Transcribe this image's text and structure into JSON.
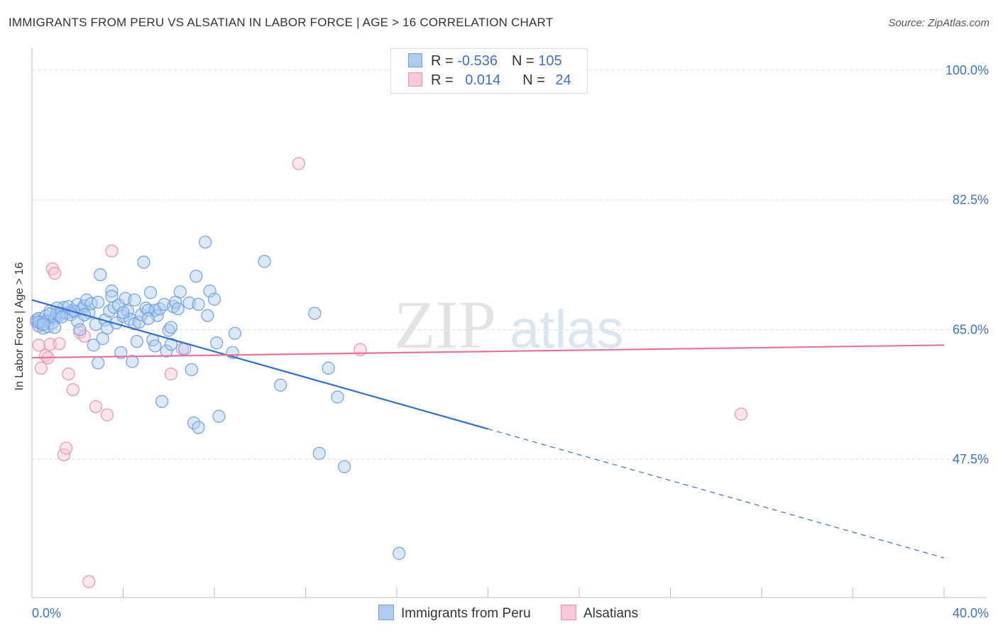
{
  "title": "IMMIGRANTS FROM PERU VS ALSATIAN IN LABOR FORCE | AGE > 16 CORRELATION CHART",
  "source": "Source: ZipAtlas.com",
  "watermark": {
    "zip": "ZIP",
    "atlas": "atlas"
  },
  "colors": {
    "blue": "#6fa0e0",
    "blue_fill": "#aecbf0",
    "pink": "#f08fb0",
    "pink_fill": "#f8c6d8",
    "blue_line": "#2f6fd0",
    "pink_line": "#e8739c",
    "tick_text": "#3b72c9"
  },
  "legend": {
    "rows": [
      {
        "r_label": "R = ",
        "r_value": "-0.536",
        "n_label": "N = ",
        "n_value": "105"
      },
      {
        "r_label": "R = ",
        "r_value": "0.014",
        "n_label": "N = ",
        "n_value": "24"
      }
    ]
  },
  "bottom_legend": [
    "Immigrants from Peru",
    "Alsatians"
  ],
  "chart_data": {
    "type": "scatter",
    "title": "IMMIGRANTS FROM PERU VS ALSATIAN IN LABOR FORCE | AGE > 16 CORRELATION CHART",
    "xlabel": "",
    "ylabel": "In Labor Force | Age > 16",
    "xlim": [
      0,
      40
    ],
    "ylim": [
      30,
      102
    ],
    "x_tick_labels": [
      "0.0%",
      "40.0%"
    ],
    "y_ticks": [
      47.5,
      65.0,
      82.5,
      100.0
    ],
    "y_tick_labels": [
      "47.5%",
      "65.0%",
      "82.5%",
      "100.0%"
    ],
    "grid": true,
    "series": [
      {
        "name": "Immigrants from Peru",
        "points": [
          [
            0.2,
            66.3
          ],
          [
            0.3,
            65.5
          ],
          [
            0.3,
            66.5
          ],
          [
            0.4,
            65.8
          ],
          [
            0.5,
            66.0
          ],
          [
            0.5,
            65.2
          ],
          [
            0.6,
            66.8
          ],
          [
            0.7,
            65.4
          ],
          [
            0.7,
            66.2
          ],
          [
            0.8,
            67.5
          ],
          [
            0.9,
            65.9
          ],
          [
            1.0,
            66.6
          ],
          [
            1.0,
            65.3
          ],
          [
            1.1,
            67.1
          ],
          [
            1.2,
            66.9
          ],
          [
            1.3,
            67.3
          ],
          [
            1.4,
            68.0
          ],
          [
            1.5,
            67.2
          ],
          [
            1.6,
            68.1
          ],
          [
            1.7,
            67.0
          ],
          [
            1.8,
            67.6
          ],
          [
            1.9,
            67.4
          ],
          [
            2.0,
            66.1
          ],
          [
            2.0,
            68.4
          ],
          [
            2.1,
            65.0
          ],
          [
            2.2,
            67.8
          ],
          [
            2.3,
            68.2
          ],
          [
            2.4,
            69.0
          ],
          [
            2.5,
            67.3
          ],
          [
            2.6,
            68.5
          ],
          [
            2.7,
            62.9
          ],
          [
            2.8,
            65.7
          ],
          [
            2.9,
            60.5
          ],
          [
            3.0,
            72.4
          ],
          [
            3.1,
            63.8
          ],
          [
            3.2,
            66.3
          ],
          [
            3.3,
            65.2
          ],
          [
            3.4,
            67.5
          ],
          [
            3.5,
            70.2
          ],
          [
            3.6,
            68.0
          ],
          [
            3.7,
            65.9
          ],
          [
            3.8,
            68.3
          ],
          [
            3.9,
            61.9
          ],
          [
            4.0,
            66.8
          ],
          [
            4.1,
            69.2
          ],
          [
            4.2,
            67.5
          ],
          [
            4.3,
            66.4
          ],
          [
            4.4,
            60.7
          ],
          [
            4.5,
            65.8
          ],
          [
            4.6,
            63.4
          ],
          [
            4.7,
            66.0
          ],
          [
            4.8,
            67.0
          ],
          [
            4.9,
            74.1
          ],
          [
            5.0,
            67.9
          ],
          [
            5.1,
            67.6
          ],
          [
            5.2,
            70.0
          ],
          [
            5.3,
            63.6
          ],
          [
            5.4,
            67.6
          ],
          [
            5.5,
            66.9
          ],
          [
            5.6,
            67.8
          ],
          [
            5.7,
            55.3
          ],
          [
            5.8,
            68.4
          ],
          [
            5.9,
            62.1
          ],
          [
            6.0,
            64.9
          ],
          [
            6.1,
            63.0
          ],
          [
            6.2,
            68.1
          ],
          [
            6.3,
            68.7
          ],
          [
            6.4,
            67.8
          ],
          [
            6.5,
            70.1
          ],
          [
            6.7,
            62.4
          ],
          [
            6.9,
            68.6
          ],
          [
            7.0,
            59.6
          ],
          [
            7.1,
            52.4
          ],
          [
            7.2,
            72.2
          ],
          [
            7.3,
            51.8
          ],
          [
            7.6,
            76.8
          ],
          [
            7.7,
            66.9
          ],
          [
            7.8,
            70.2
          ],
          [
            8.0,
            69.1
          ],
          [
            8.1,
            63.2
          ],
          [
            8.2,
            53.3
          ],
          [
            8.8,
            61.9
          ],
          [
            8.9,
            64.5
          ],
          [
            10.2,
            74.2
          ],
          [
            10.9,
            57.5
          ],
          [
            12.4,
            67.2
          ],
          [
            12.6,
            48.3
          ],
          [
            13.0,
            59.8
          ],
          [
            13.4,
            55.9
          ],
          [
            13.7,
            46.5
          ],
          [
            16.1,
            34.8
          ],
          [
            0.3,
            66.0
          ],
          [
            0.5,
            65.7
          ],
          [
            1.1,
            67.9
          ],
          [
            1.3,
            66.7
          ],
          [
            2.3,
            67.0
          ],
          [
            2.9,
            68.7
          ],
          [
            3.5,
            69.5
          ],
          [
            4.0,
            67.3
          ],
          [
            4.5,
            69.0
          ],
          [
            5.1,
            66.5
          ],
          [
            5.4,
            62.8
          ],
          [
            6.1,
            65.3
          ],
          [
            7.3,
            68.4
          ],
          [
            0.8,
            67.1
          ]
        ]
      },
      {
        "name": "Alsatians",
        "points": [
          [
            0.2,
            66.0
          ],
          [
            0.3,
            62.9
          ],
          [
            0.4,
            59.8
          ],
          [
            0.6,
            61.5
          ],
          [
            0.7,
            61.2
          ],
          [
            0.8,
            63.0
          ],
          [
            0.9,
            73.2
          ],
          [
            1.0,
            72.6
          ],
          [
            1.2,
            63.1
          ],
          [
            1.4,
            48.1
          ],
          [
            1.5,
            49.0
          ],
          [
            1.6,
            59.0
          ],
          [
            1.8,
            56.9
          ],
          [
            2.1,
            64.6
          ],
          [
            2.3,
            64.1
          ],
          [
            2.5,
            31.0
          ],
          [
            2.8,
            54.6
          ],
          [
            3.3,
            53.5
          ],
          [
            3.5,
            75.6
          ],
          [
            6.1,
            59.0
          ],
          [
            6.6,
            62.4
          ],
          [
            11.7,
            87.4
          ],
          [
            14.4,
            62.3
          ],
          [
            31.1,
            53.6
          ]
        ]
      }
    ],
    "trend_lines": [
      {
        "series": "Immigrants from Peru",
        "x": [
          0,
          20
        ],
        "y": [
          69.0,
          51.6
        ],
        "style": "solid"
      },
      {
        "series": "Immigrants from Peru",
        "x": [
          20,
          40
        ],
        "y": [
          51.6,
          34.2
        ],
        "style": "dashed"
      },
      {
        "series": "Alsatians",
        "x": [
          0,
          40
        ],
        "y": [
          61.2,
          62.9
        ],
        "style": "solid"
      }
    ]
  }
}
